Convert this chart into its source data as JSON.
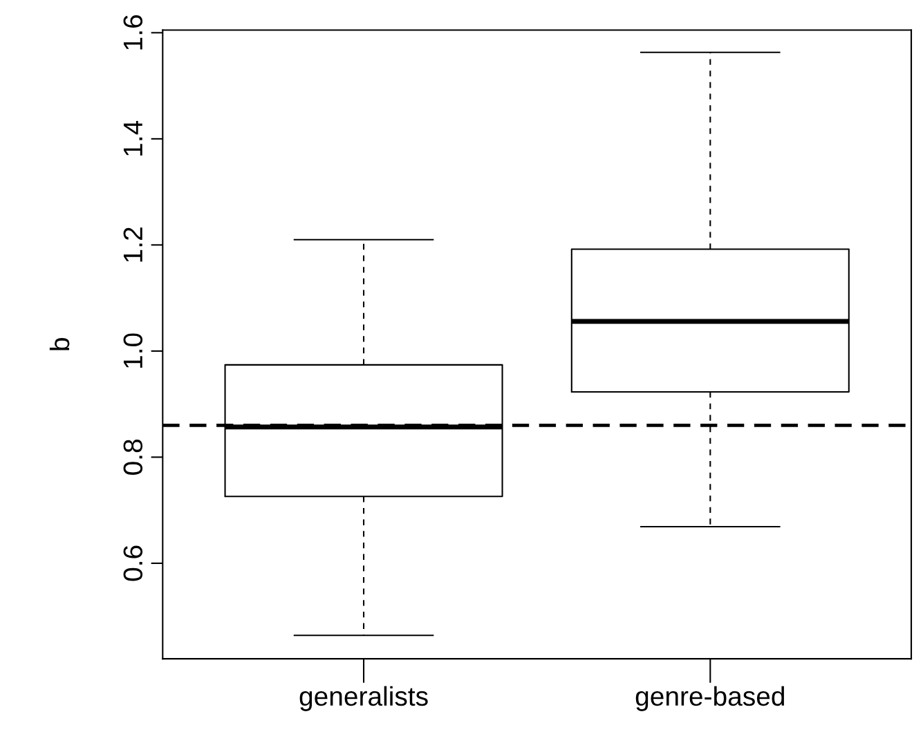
{
  "chart_data": {
    "type": "box",
    "ylabel": "b",
    "categories": [
      "generalists",
      "genre-based"
    ],
    "boxes": [
      {
        "low": 0.464,
        "q1": 0.726,
        "median": 0.857,
        "q3": 0.974,
        "high": 1.21
      },
      {
        "low": 0.669,
        "q1": 0.923,
        "median": 1.056,
        "q3": 1.192,
        "high": 1.563
      }
    ],
    "ylim": [
      0.42,
      1.605
    ],
    "yticks": [
      0.6,
      0.8,
      {
        "value": 1.0,
        "label": "1.0"
      },
      1.2,
      1.4,
      1.6
    ],
    "ref_lines": [
      {
        "axis": "y",
        "value": 0.86,
        "color": "#000000",
        "line_style": "dashed"
      }
    ],
    "grid": false
  }
}
